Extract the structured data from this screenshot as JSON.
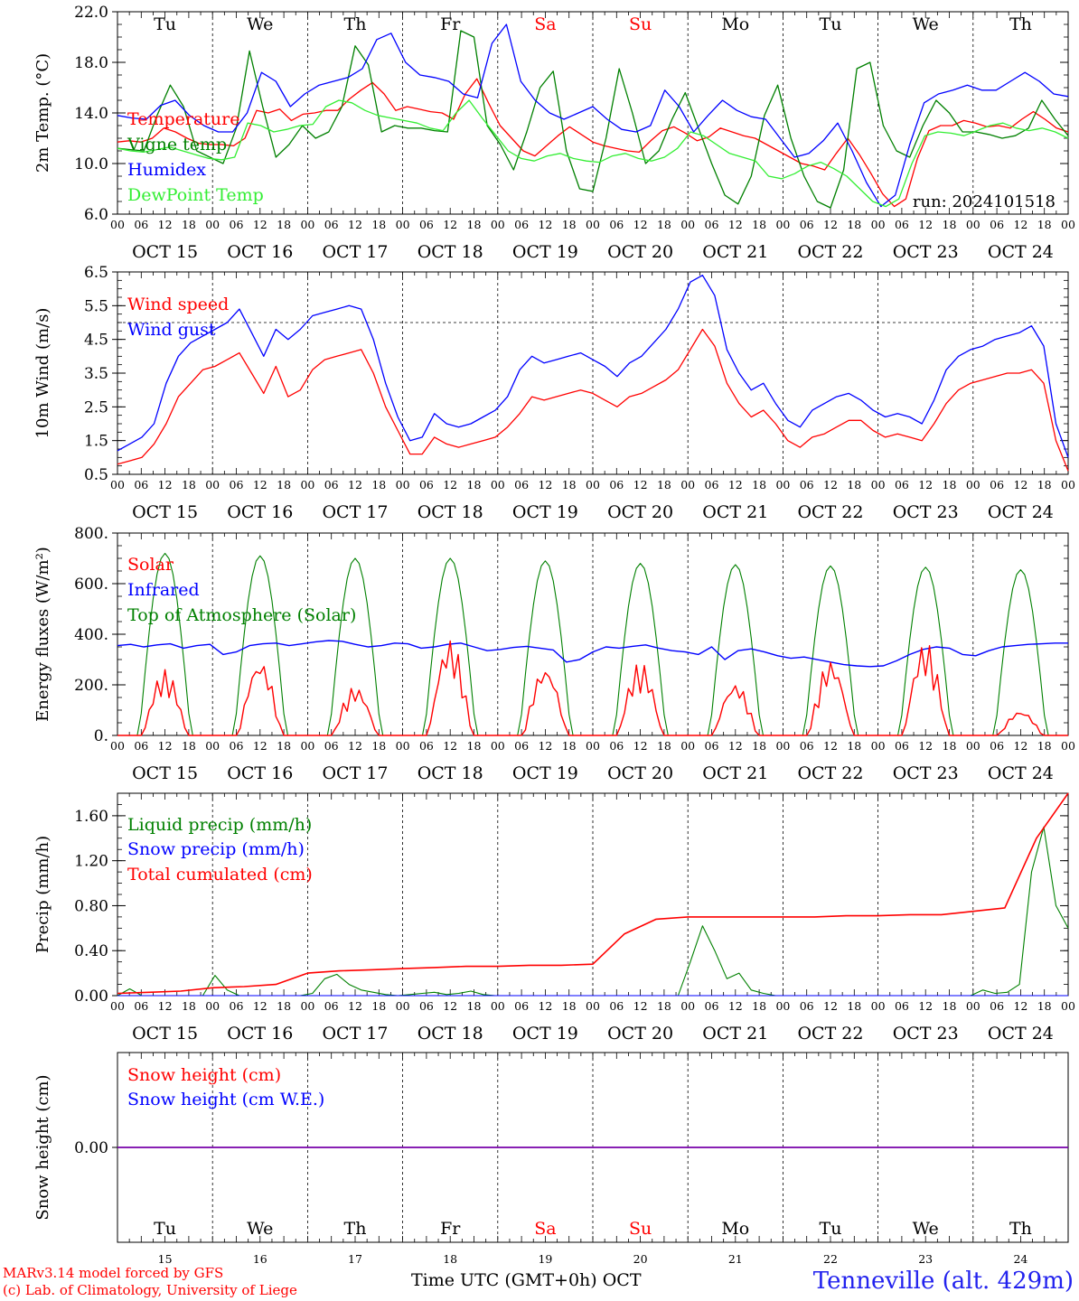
{
  "colors": {
    "red": "#ff0000",
    "green": "#008000",
    "blue": "#0000ff",
    "lightgreen": "#33ee33",
    "purple": "#7700aa"
  },
  "run_label": "run: 2024101518",
  "date_labels": [
    "OCT 15",
    "OCT 16",
    "OCT 17",
    "OCT 18",
    "OCT 19",
    "OCT 20",
    "OCT 21",
    "OCT 22",
    "OCT 23",
    "OCT 24"
  ],
  "hour_labels": [
    "00",
    "06",
    "12",
    "18"
  ],
  "last_hour_label": "00",
  "weekdays": [
    "Tu",
    "We",
    "Th",
    "Fr",
    "Sa",
    "Su",
    "Mo",
    "Tu",
    "We",
    "Th"
  ],
  "weekend_indices": [
    4,
    5
  ],
  "day_numbers": [
    "15",
    "16",
    "17",
    "18",
    "19",
    "20",
    "21",
    "22",
    "23",
    "24"
  ],
  "footer": {
    "credit_line1": "MARv3.14 model forced by GFS",
    "credit_line2": "(c) Lab. of Climatology, University of Liege",
    "xlabel": "Time UTC (GMT+0h) OCT",
    "station": "Tenneville (alt. 429m)"
  },
  "chart_data": [
    {
      "type": "line",
      "ylabel": "2m Temp. (°C)",
      "ylim": [
        6,
        22
      ],
      "yticks": [
        "6.0",
        "10.0",
        "14.0",
        "18.0",
        "22.0"
      ],
      "ytick_values": [
        6,
        10,
        14,
        18,
        22
      ],
      "x_unit": "hours since 2024-10-15 00 UTC, 3-hourly",
      "series": [
        {
          "name": "Temperature",
          "color": "red",
          "values": [
            11.7,
            11.8,
            11.7,
            12.0,
            12.8,
            12.5,
            12.0,
            11.6,
            11.5,
            11.5,
            11.4,
            12.0,
            14.2,
            14.0,
            14.3,
            13.4,
            13.9,
            14.0,
            14.2,
            14.2,
            15.1,
            15.8,
            16.4,
            15.5,
            14.2,
            14.5,
            14.3,
            14.1,
            14.0,
            13.5,
            15.5,
            16.7,
            14.8,
            13.0,
            12.0,
            11.0,
            10.6,
            11.4,
            12.2,
            12.9,
            12.3,
            11.7,
            11.4,
            11.2,
            11.0,
            10.9,
            11.8,
            12.6,
            12.9,
            12.4,
            11.8,
            12.1,
            12.8,
            12.5,
            12.2,
            12.0,
            11.5,
            11.0,
            10.5,
            10.0,
            9.8,
            9.5,
            10.8,
            12.0,
            10.7,
            9.2,
            7.6,
            6.6,
            7.2,
            10.4,
            12.6,
            13.0,
            13.0,
            13.4,
            13.2,
            12.9,
            13.0,
            12.8,
            13.5,
            14.1,
            13.5,
            12.8,
            12.5
          ]
        },
        {
          "name": "Vigne temp",
          "color": "green",
          "values": [
            11.2,
            11.1,
            11.0,
            13.8,
            16.2,
            14.5,
            11.0,
            10.5,
            10.0,
            12.8,
            18.9,
            14.5,
            10.5,
            11.5,
            13.0,
            12.0,
            12.5,
            14.5,
            19.3,
            17.8,
            12.5,
            13.0,
            12.8,
            12.8,
            12.6,
            12.5,
            20.5,
            20.0,
            13.0,
            11.5,
            9.5,
            12.5,
            16.0,
            17.3,
            11.0,
            8.0,
            7.8,
            12.0,
            17.5,
            14.0,
            10.0,
            11.0,
            13.5,
            15.6,
            12.8,
            10.0,
            7.5,
            6.8,
            9.0,
            13.8,
            16.2,
            12.0,
            9.0,
            7.0,
            6.5,
            9.5,
            17.5,
            18.0,
            13.0,
            11.0,
            10.5,
            13.0,
            15.0,
            14.0,
            12.5,
            12.5,
            12.3,
            12.0,
            12.2,
            12.8,
            15.0,
            13.5,
            12.2
          ]
        },
        {
          "name": "Humidex",
          "color": "blue",
          "values": [
            13.8,
            13.6,
            13.5,
            14.6,
            15.0,
            13.8,
            13.0,
            12.5,
            12.5,
            14.0,
            17.2,
            16.5,
            14.5,
            15.5,
            16.2,
            16.5,
            16.8,
            17.5,
            19.8,
            20.3,
            18.0,
            17.0,
            16.8,
            16.5,
            15.5,
            15.2,
            19.5,
            21.0,
            16.5,
            15.0,
            14.0,
            13.5,
            14.0,
            14.5,
            13.5,
            12.7,
            12.5,
            13.0,
            15.8,
            14.5,
            12.5,
            13.8,
            15.0,
            14.2,
            13.7,
            13.5,
            12.0,
            10.5,
            10.8,
            11.8,
            13.2,
            11.0,
            8.5,
            6.6,
            7.5,
            11.5,
            14.8,
            15.5,
            15.8,
            16.2,
            15.8,
            15.8,
            16.5,
            17.2,
            16.5,
            15.5,
            15.3
          ]
        },
        {
          "name": "DewPoint Temp",
          "color": "lightgreen",
          "values": [
            11.2,
            11.0,
            10.9,
            11.1,
            11.3,
            11.0,
            10.7,
            10.4,
            10.3,
            10.5,
            13.2,
            13.0,
            12.5,
            12.7,
            13.0,
            13.1,
            14.5,
            15.0,
            14.8,
            14.2,
            13.8,
            13.6,
            13.4,
            13.2,
            12.8,
            12.6,
            14.0,
            15.0,
            13.6,
            12.3,
            11.0,
            10.4,
            10.2,
            10.6,
            10.8,
            10.4,
            10.2,
            10.1,
            10.6,
            10.8,
            10.4,
            10.2,
            10.5,
            11.2,
            12.5,
            12.2,
            11.5,
            10.8,
            10.5,
            10.2,
            9.0,
            8.8,
            9.2,
            9.8,
            10.1,
            9.6,
            9.0,
            8.0,
            7.0,
            6.6,
            7.2,
            10.0,
            12.2,
            12.5,
            12.4,
            12.2,
            12.6,
            13.0,
            13.2,
            12.8,
            12.6,
            12.8,
            12.5,
            12.0
          ]
        }
      ]
    },
    {
      "type": "line",
      "ylabel": "10m Wind (m/s)",
      "ylim": [
        0.5,
        6.5
      ],
      "yticks": [
        "0.5",
        "1.5",
        "2.5",
        "3.5",
        "4.5",
        "5.5",
        "6.5"
      ],
      "ytick_values": [
        0.5,
        1.5,
        2.5,
        3.5,
        4.5,
        5.5,
        6.5
      ],
      "reference_line": 5.0,
      "series": [
        {
          "name": "Wind speed",
          "color": "red",
          "values": [
            0.8,
            0.9,
            1.0,
            1.4,
            2.0,
            2.8,
            3.2,
            3.6,
            3.7,
            3.9,
            4.1,
            3.5,
            2.9,
            3.7,
            2.8,
            3.0,
            3.6,
            3.9,
            4.0,
            4.1,
            4.2,
            3.5,
            2.5,
            1.8,
            1.1,
            1.1,
            1.6,
            1.4,
            1.3,
            1.4,
            1.5,
            1.6,
            1.9,
            2.3,
            2.8,
            2.7,
            2.8,
            2.9,
            3.0,
            2.9,
            2.7,
            2.5,
            2.8,
            2.9,
            3.1,
            3.3,
            3.6,
            4.2,
            4.8,
            4.3,
            3.2,
            2.6,
            2.2,
            2.4,
            2.0,
            1.5,
            1.3,
            1.6,
            1.7,
            1.9,
            2.1,
            2.1,
            1.8,
            1.6,
            1.7,
            1.6,
            1.5,
            2.0,
            2.6,
            3.0,
            3.2,
            3.3,
            3.4,
            3.5,
            3.5,
            3.6,
            3.2,
            1.5,
            0.6
          ]
        },
        {
          "name": "Wind gust",
          "color": "blue",
          "values": [
            1.2,
            1.4,
            1.6,
            2.0,
            3.2,
            4.0,
            4.4,
            4.6,
            4.8,
            5.0,
            5.4,
            4.7,
            4.0,
            4.8,
            4.5,
            4.8,
            5.2,
            5.3,
            5.4,
            5.5,
            5.4,
            4.5,
            3.2,
            2.2,
            1.5,
            1.6,
            2.3,
            2.0,
            1.9,
            2.0,
            2.2,
            2.4,
            2.8,
            3.6,
            4.0,
            3.8,
            3.9,
            4.0,
            4.1,
            3.9,
            3.7,
            3.4,
            3.8,
            4.0,
            4.4,
            4.8,
            5.4,
            6.2,
            6.4,
            5.8,
            4.2,
            3.5,
            3.0,
            3.2,
            2.6,
            2.1,
            1.9,
            2.4,
            2.6,
            2.8,
            2.9,
            2.7,
            2.4,
            2.2,
            2.3,
            2.2,
            2.0,
            2.7,
            3.6,
            4.0,
            4.2,
            4.3,
            4.5,
            4.6,
            4.7,
            4.9,
            4.3,
            2.0,
            1.0
          ]
        }
      ]
    },
    {
      "type": "line",
      "ylabel": "Energy fluxes (W/m²)",
      "ylim": [
        0,
        800
      ],
      "yticks": [
        "0.",
        "200.",
        "400.",
        "600.",
        "800."
      ],
      "ytick_values": [
        0,
        200,
        400,
        600,
        800
      ],
      "series": [
        {
          "name": "Solar",
          "color": "red",
          "peaks": [
            260,
            300,
            195,
            380,
            275,
            290,
            210,
            300,
            370,
            100
          ]
        },
        {
          "name": "Infrared",
          "color": "blue",
          "values": [
            355,
            360,
            350,
            358,
            362,
            345,
            355,
            360,
            320,
            330,
            355,
            362,
            365,
            355,
            362,
            370,
            375,
            372,
            360,
            350,
            355,
            365,
            362,
            345,
            350,
            360,
            365,
            350,
            335,
            340,
            348,
            352,
            345,
            338,
            290,
            300,
            330,
            350,
            345,
            352,
            358,
            345,
            335,
            330,
            320,
            350,
            300,
            335,
            342,
            330,
            315,
            305,
            310,
            300,
            290,
            280,
            275,
            272,
            275,
            295,
            320,
            340,
            350,
            345,
            320,
            315,
            335,
            350,
            355,
            360,
            362,
            365,
            365
          ]
        },
        {
          "name": "Top of Atmosphere (Solar)",
          "color": "green",
          "peaks": [
            720,
            710,
            700,
            700,
            690,
            680,
            675,
            670,
            665,
            655
          ]
        }
      ]
    },
    {
      "type": "line",
      "ylabel": "Precip (mm/h)",
      "ylim": [
        0,
        1.8
      ],
      "yticks": [
        "0.00",
        "0.40",
        "0.80",
        "1.20",
        "1.60"
      ],
      "ytick_values": [
        0,
        0.4,
        0.8,
        1.2,
        1.6
      ],
      "series": [
        {
          "name": "Liquid precip (mm/h)",
          "color": "green",
          "values": [
            0,
            0.06,
            0,
            0,
            0,
            0,
            0,
            0,
            0.18,
            0.05,
            0,
            0,
            0,
            0,
            0,
            0,
            0.02,
            0.15,
            0.19,
            0.1,
            0.05,
            0.03,
            0.01,
            0,
            0.01,
            0.02,
            0.03,
            0.01,
            0.02,
            0.04,
            0.01,
            0,
            0,
            0,
            0,
            0,
            0,
            0,
            0,
            0,
            0,
            0,
            0,
            0,
            0,
            0,
            0,
            0.3,
            0.62,
            0.4,
            0.15,
            0.2,
            0.05,
            0.02,
            0,
            0,
            0,
            0,
            0,
            0,
            0,
            0,
            0,
            0,
            0,
            0,
            0,
            0,
            0,
            0,
            0,
            0.05,
            0.02,
            0.03,
            0.1,
            1.1,
            1.5,
            0.8,
            0.6
          ]
        },
        {
          "name": "Snow precip (mm/h)",
          "color": "blue",
          "values": [
            0,
            0,
            0,
            0,
            0,
            0,
            0,
            0,
            0,
            0,
            0
          ]
        },
        {
          "name": "Total cumulated (cm)",
          "color": "red",
          "values": [
            0.02,
            0.03,
            0.04,
            0.07,
            0.08,
            0.1,
            0.2,
            0.22,
            0.23,
            0.24,
            0.25,
            0.26,
            0.26,
            0.27,
            0.27,
            0.28,
            0.55,
            0.68,
            0.7,
            0.7,
            0.7,
            0.7,
            0.7,
            0.71,
            0.71,
            0.72,
            0.72,
            0.75,
            0.78,
            1.4,
            1.8
          ]
        }
      ]
    },
    {
      "type": "line",
      "ylabel": "Snow height (cm)",
      "yticks": [
        "0.00"
      ],
      "series": [
        {
          "name": "Snow height (cm)",
          "color": "red",
          "values": [
            0,
            0
          ]
        },
        {
          "name": "Snow height (cm W.E.)",
          "color": "blue",
          "values": [
            0,
            0
          ]
        }
      ]
    }
  ]
}
